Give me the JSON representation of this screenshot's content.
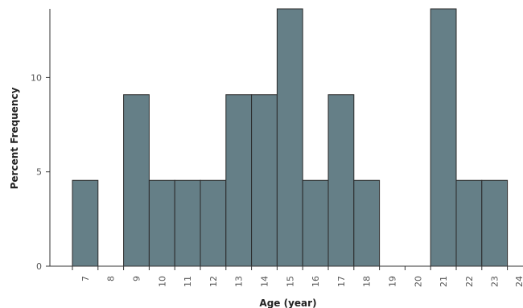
{
  "chart_data": {
    "type": "bar",
    "title": "",
    "xlabel": "Age (year)",
    "ylabel": "Percent Frequency",
    "categories": [
      "7",
      "8",
      "9",
      "10",
      "11",
      "12",
      "13",
      "14",
      "15",
      "16",
      "17",
      "18",
      "19",
      "20",
      "21",
      "22",
      "23"
    ],
    "bin_edges": [
      7,
      8,
      9,
      10,
      11,
      12,
      13,
      14,
      15,
      16,
      17,
      18,
      19,
      20,
      21,
      22,
      23,
      24
    ],
    "values": [
      4.55,
      0,
      9.09,
      4.55,
      4.55,
      4.55,
      9.09,
      9.09,
      13.64,
      4.55,
      9.09,
      4.55,
      0,
      0,
      13.64,
      4.55,
      4.55
    ],
    "x_ticks": [
      "7",
      "8",
      "9",
      "10",
      "11",
      "12",
      "13",
      "14",
      "15",
      "16",
      "17",
      "18",
      "19",
      "20",
      "21",
      "22",
      "23",
      "24"
    ],
    "y_ticks": [
      "0",
      "5",
      "10"
    ],
    "y_tick_values": [
      0,
      5,
      10
    ],
    "ylim": [
      0,
      13.64
    ],
    "grid": false,
    "bar_color": "#657f87"
  }
}
